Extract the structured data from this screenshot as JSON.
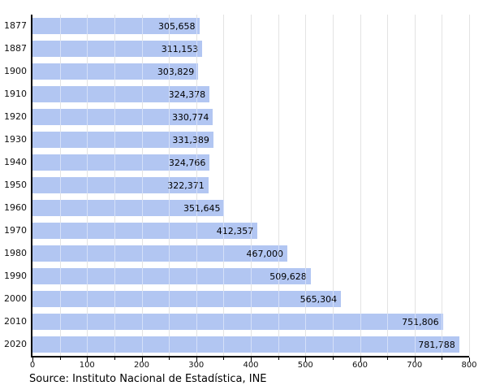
{
  "source_note": "Source: Instituto Nacional de Estadística, INE",
  "colors": {
    "bar_fill": "#b2c6f2",
    "gridline": "#cccccc",
    "axis": "#000000",
    "text": "#000000",
    "background": "#ffffff"
  },
  "chart_data": {
    "type": "bar",
    "orientation": "horizontal",
    "title": "",
    "xlabel": "",
    "ylabel": "",
    "categories": [
      "1877",
      "1887",
      "1900",
      "1910",
      "1920",
      "1930",
      "1940",
      "1950",
      "1960",
      "1970",
      "1980",
      "1990",
      "2000",
      "2010",
      "2020"
    ],
    "values": [
      305658,
      311153,
      303829,
      324378,
      330774,
      331389,
      324766,
      322371,
      351645,
      412357,
      467000,
      509628,
      565304,
      751806,
      781788
    ],
    "value_labels": [
      "305,658",
      "311,153",
      "303,829",
      "324,378",
      "330,774",
      "331,389",
      "324,766",
      "322,371",
      "351,645",
      "412,357",
      "467,000",
      "509,628",
      "565,304",
      "751,806",
      "781,788"
    ],
    "xlim": [
      0,
      800000
    ],
    "x_tick_step": 100000,
    "x_minor_tick_step": 50000,
    "x_tick_labels": [
      "0",
      "100",
      "200",
      "300",
      "400",
      "500",
      "600",
      "700",
      "800"
    ],
    "x_axis_unit": "thousands",
    "grid": true,
    "legend": false
  }
}
